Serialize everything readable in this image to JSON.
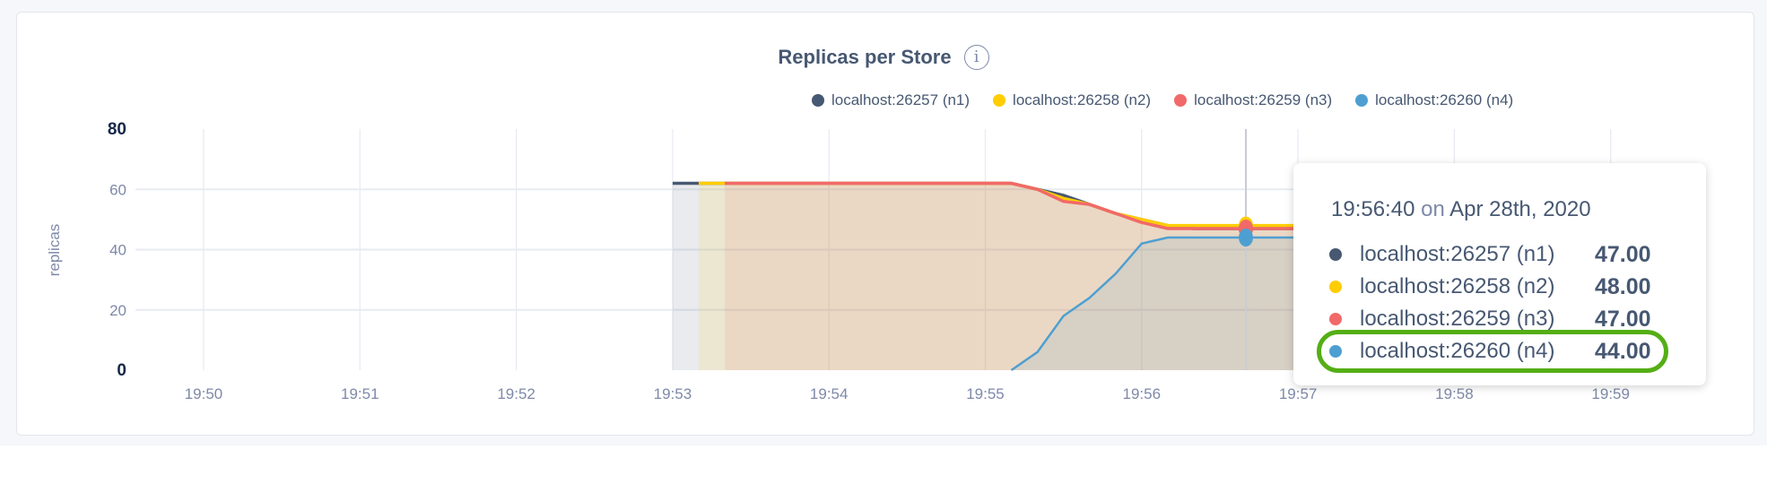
{
  "chart_data": {
    "type": "area",
    "title": "Replicas per Store",
    "ylabel": "replicas",
    "xlabel": "",
    "ylim": [
      0,
      80
    ],
    "yticks": [
      "0",
      "20",
      "40",
      "60",
      "80"
    ],
    "xticks": [
      "19:50",
      "19:51",
      "19:52",
      "19:53",
      "19:54",
      "19:55",
      "19:56",
      "19:57",
      "19:58",
      "19:59"
    ],
    "grid": true,
    "legend_position": "top-right",
    "x": [
      "19:53:00",
      "19:53:10",
      "19:53:20",
      "19:53:30",
      "19:53:40",
      "19:53:50",
      "19:54:00",
      "19:54:10",
      "19:54:20",
      "19:54:30",
      "19:54:40",
      "19:54:50",
      "19:55:00",
      "19:55:10",
      "19:55:20",
      "19:55:30",
      "19:55:40",
      "19:55:50",
      "19:56:00",
      "19:56:10",
      "19:56:20",
      "19:56:30",
      "19:56:40",
      "19:56:50",
      "19:57:00",
      "19:57:10"
    ],
    "series": [
      {
        "name": "localhost:26257 (n1)",
        "color": "#475872",
        "values": [
          62,
          62,
          62,
          62,
          62,
          62,
          62,
          62,
          62,
          62,
          62,
          62,
          62,
          62,
          60,
          58,
          55,
          52,
          50,
          48,
          47,
          47,
          47,
          47,
          47,
          47
        ]
      },
      {
        "name": "localhost:26258 (n2)",
        "color": "#ffcd02",
        "values": [
          null,
          62,
          62,
          62,
          62,
          62,
          62,
          62,
          62,
          62,
          62,
          62,
          62,
          62,
          60,
          57,
          55,
          52,
          50,
          48,
          48,
          48,
          48,
          48,
          48,
          48
        ]
      },
      {
        "name": "localhost:26259 (n3)",
        "color": "#f16969",
        "values": [
          null,
          null,
          62,
          62,
          62,
          62,
          62,
          62,
          62,
          62,
          62,
          62,
          62,
          62,
          60,
          56,
          55,
          52,
          49,
          47,
          47,
          47,
          47,
          47,
          47,
          47
        ]
      },
      {
        "name": "localhost:26260 (n4)",
        "color": "#4e9fd1",
        "values": [
          null,
          null,
          null,
          null,
          null,
          null,
          null,
          null,
          null,
          null,
          null,
          null,
          null,
          0,
          6,
          18,
          24,
          32,
          42,
          44,
          44,
          44,
          44,
          44,
          44,
          44
        ]
      }
    ]
  },
  "info_icon": "info-icon",
  "tooltip": {
    "time": "19:56:40",
    "on": "on",
    "date": "Apr 28th, 2020",
    "rows": [
      {
        "label": "localhost:26257 (n1)",
        "value": "47.00",
        "color": "#475872"
      },
      {
        "label": "localhost:26258 (n2)",
        "value": "48.00",
        "color": "#ffcd02"
      },
      {
        "label": "localhost:26259 (n3)",
        "value": "47.00",
        "color": "#f16969"
      },
      {
        "label": "localhost:26260 (n4)",
        "value": "44.00",
        "color": "#4e9fd1",
        "highlighted": true
      }
    ],
    "highlight_color": "#54ae15"
  }
}
